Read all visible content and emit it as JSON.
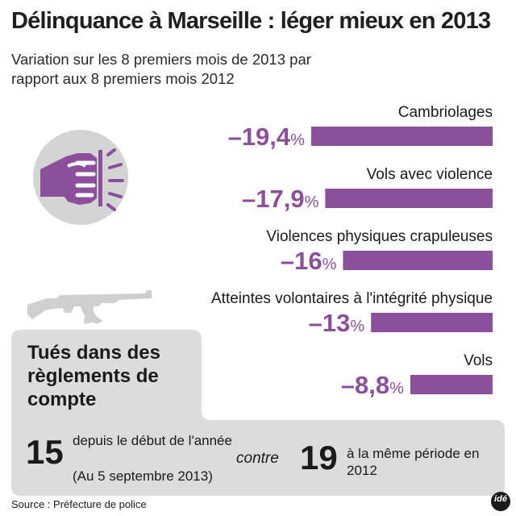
{
  "title": "Délinquance à Marseille : léger mieux en 2013",
  "subtitle": "Variation sur les 8 premiers mois de 2013 par rapport aux 8 premiers mois 2012",
  "chart_data": {
    "type": "bar",
    "orientation": "horizontal",
    "title": "Délinquance à Marseille : léger mieux en 2013",
    "subtitle": "Variation sur les 8 premiers mois de 2013 par rapport aux 8 premiers mois 2012",
    "unit": "%",
    "categories": [
      "Cambriolages",
      "Vols avec violence",
      "Violences physiques crapuleuses",
      "Atteintes volontaires à l'intégrité physique",
      "Vols"
    ],
    "values": [
      -19.4,
      -17.9,
      -16,
      -13,
      -8.8
    ],
    "value_labels": [
      "–19,4",
      "–17,9",
      "–16",
      "–13",
      "–8,8"
    ],
    "xlim": [
      -20,
      0
    ],
    "color": "#8b4f9b"
  },
  "killings": {
    "title": "Tués dans des règlements de compte",
    "current": {
      "number": "15",
      "text": "depuis le début de l'année",
      "note": "(Au 5 septembre 2013)"
    },
    "separator": "contre",
    "previous": {
      "number": "19",
      "text": "à la même période en 2012"
    }
  },
  "source": "Source : Préfecture de police",
  "logo": "idé",
  "colors": {
    "accent": "#8b4f9b",
    "panel": "#dcdcdc",
    "gun": "#cfcfcf",
    "icon_bg": "#d4d4d4"
  },
  "icons": [
    "fist-punch-icon",
    "rifle-icon"
  ]
}
